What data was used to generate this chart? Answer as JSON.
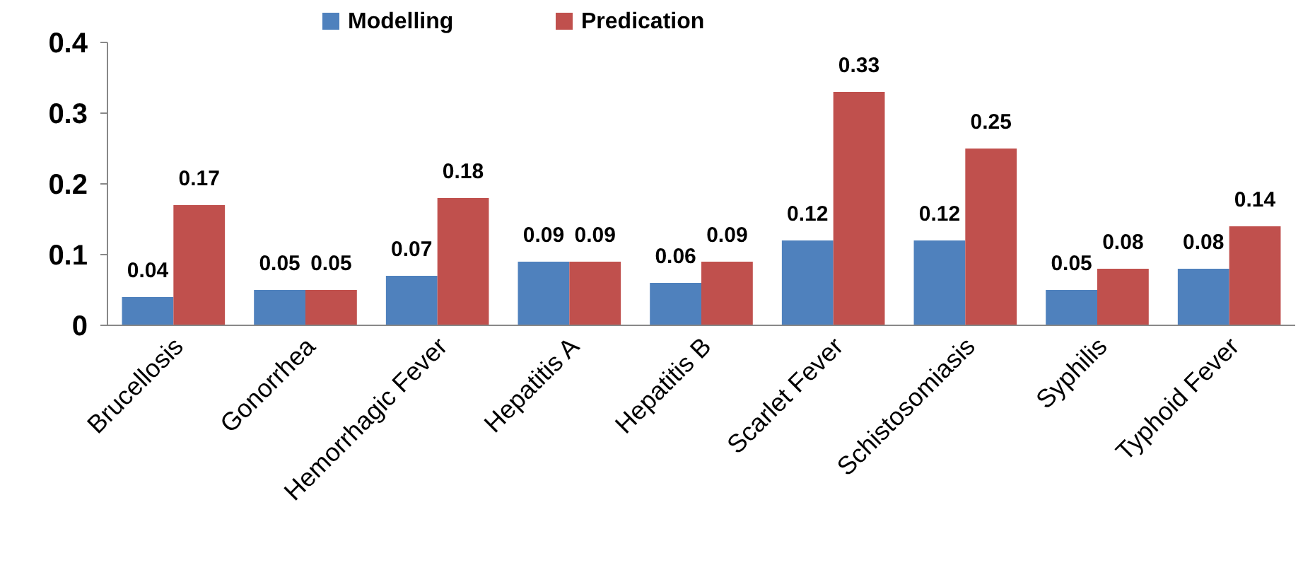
{
  "chart_data": {
    "type": "bar",
    "categories": [
      "Brucellosis",
      "Gonorrhea",
      "Hemorrhagic Fever",
      "Hepatitis A",
      "Hepatitis B",
      "Scarlet Fever",
      "Schistosomiasis",
      "Syphilis",
      "Typhoid Fever"
    ],
    "series": [
      {
        "name": "Modelling",
        "color": "#4f81bd",
        "values": [
          0.04,
          0.05,
          0.07,
          0.09,
          0.06,
          0.12,
          0.12,
          0.05,
          0.08
        ]
      },
      {
        "name": "Predication",
        "color": "#c0504d",
        "values": [
          0.17,
          0.05,
          0.18,
          0.09,
          0.09,
          0.33,
          0.25,
          0.08,
          0.14
        ]
      }
    ],
    "ylim": [
      0,
      0.4
    ],
    "yticks": [
      0,
      0.1,
      0.2,
      0.3,
      0.4
    ],
    "data_labels": true,
    "legend": "top",
    "grid": false
  }
}
